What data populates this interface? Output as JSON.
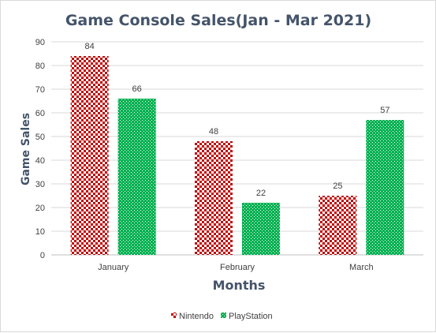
{
  "chart_data": {
    "type": "bar",
    "title": "Game Console Sales(Jan - Mar 2021)",
    "xlabel": "Months",
    "ylabel": "Game Sales",
    "categories": [
      "January",
      "February",
      "March"
    ],
    "series": [
      {
        "name": "Nintendo",
        "values": [
          84,
          48,
          25
        ],
        "color": "#c00000",
        "pattern": "checkerboard"
      },
      {
        "name": "PlayStation",
        "values": [
          66,
          22,
          57
        ],
        "color": "#00b050",
        "pattern": "dotted"
      }
    ],
    "ylim": [
      0,
      90
    ],
    "yticks": [
      0,
      10,
      20,
      30,
      40,
      50,
      60,
      70,
      80,
      90
    ],
    "grid": true,
    "legend": "bottom",
    "data_labels": true
  }
}
